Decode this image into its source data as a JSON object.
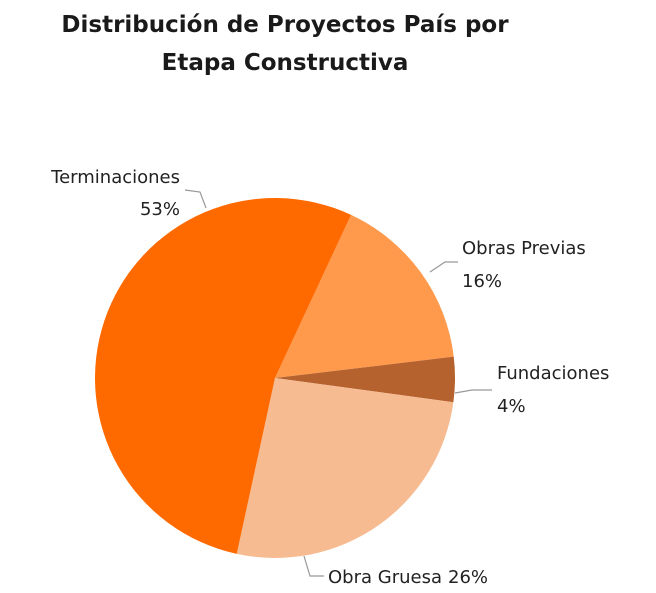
{
  "chart_data": {
    "type": "pie",
    "title": "Distribución de Proyectos País por Etapa Constructiva",
    "categories": [
      "Obras Previas",
      "Fundaciones",
      "Obra Gruesa",
      "Terminaciones"
    ],
    "values": [
      16,
      4,
      26,
      53
    ],
    "value_labels": [
      "16%",
      "4%",
      "26%",
      "53%"
    ],
    "colors": [
      "#ff9a4d",
      "#b5622e",
      "#f7bb92",
      "#ff6a00"
    ]
  }
}
